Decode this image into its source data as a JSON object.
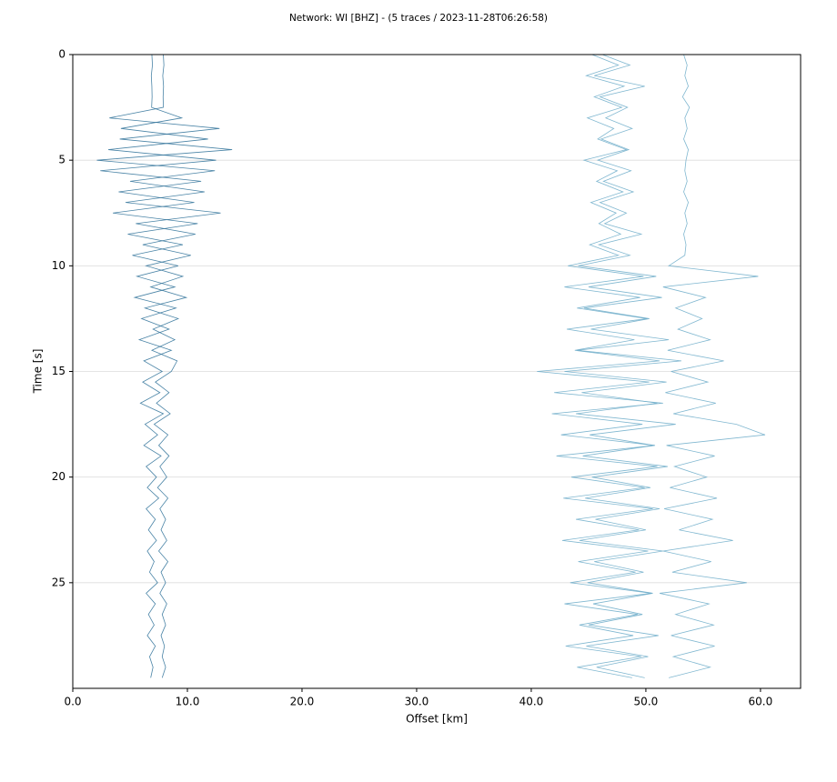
{
  "chart_data": {
    "type": "wiggle",
    "title": "Network: WI [BHZ] - (5 traces / 2023-11-28T06:26:58)",
    "xlabel": "Offset [km]",
    "ylabel": "Time [s]",
    "xlim": [
      0,
      63.5
    ],
    "ylim": [
      0,
      30
    ],
    "y_inverted": true,
    "grid": "y",
    "xticks": [
      {
        "value": 0,
        "label": "0.0"
      },
      {
        "value": 10,
        "label": "10.0"
      },
      {
        "value": 20,
        "label": "20.0"
      },
      {
        "value": 30,
        "label": "30.0"
      },
      {
        "value": 40,
        "label": "40.0"
      },
      {
        "value": 50,
        "label": "50.0"
      },
      {
        "value": 60,
        "label": "60.0"
      }
    ],
    "yticks": [
      0,
      5,
      10,
      15,
      20,
      25
    ],
    "t": [
      0,
      0.5,
      1,
      1.5,
      2,
      2.5,
      3,
      3.5,
      4,
      4.5,
      5,
      5.5,
      6,
      6.5,
      7,
      7.5,
      8,
      8.5,
      9,
      9.5,
      10,
      10.5,
      11,
      11.5,
      12,
      12.5,
      13,
      13.5,
      14,
      14.5,
      15,
      15.5,
      16,
      16.5,
      17,
      17.5,
      18,
      18.5,
      19,
      19.5,
      20,
      20.5,
      21,
      21.5,
      22,
      22.5,
      23,
      23.5,
      24,
      24.5,
      25,
      25.5,
      26,
      26.5,
      27,
      27.5,
      28,
      28.5,
      29,
      29.5
    ],
    "series": [
      {
        "color": "#2a6f97",
        "values": [
          6.9,
          6.95,
          6.85,
          6.9,
          6.92,
          6.88,
          9.5,
          4.2,
          11.8,
          3.1,
          12.5,
          2.4,
          11.2,
          4.0,
          10.6,
          3.5,
          10.9,
          4.8,
          9.6,
          5.2,
          9.2,
          5.6,
          8.9,
          5.4,
          9.0,
          6.0,
          8.4,
          5.8,
          8.6,
          6.2,
          7.8,
          6.1,
          7.6,
          5.9,
          7.9,
          6.3,
          7.4,
          6.2,
          7.7,
          6.4,
          7.3,
          6.5,
          7.5,
          6.4,
          7.2,
          6.6,
          7.3,
          6.5,
          7.1,
          6.7,
          7.4,
          6.4,
          7.2,
          6.6,
          7.1,
          6.5,
          7.2,
          6.7,
          7.0,
          6.8
        ]
      },
      {
        "color": "#2a6f97",
        "values": [
          7.9,
          7.95,
          7.85,
          7.92,
          7.88,
          7.9,
          3.2,
          12.8,
          4.1,
          13.9,
          2.1,
          12.4,
          5.0,
          11.5,
          4.6,
          12.9,
          5.5,
          10.7,
          6.1,
          10.3,
          6.4,
          9.6,
          6.8,
          9.9,
          6.3,
          9.2,
          7.0,
          8.9,
          6.9,
          9.1,
          8.6,
          7.2,
          8.4,
          7.3,
          8.5,
          7.1,
          8.3,
          7.5,
          8.4,
          7.6,
          8.2,
          7.4,
          8.3,
          7.6,
          8.1,
          7.7,
          8.2,
          7.5,
          8.3,
          7.7,
          8.1,
          7.6,
          8.2,
          7.8,
          8.1,
          7.7,
          8.0,
          7.8,
          8.1,
          7.8
        ]
      },
      {
        "color": "#6aaac8",
        "values": [
          45.3,
          47.6,
          44.8,
          48.1,
          45.5,
          47.9,
          44.9,
          47.2,
          45.8,
          48.3,
          44.6,
          47.5,
          45.7,
          48.0,
          45.2,
          47.4,
          45.9,
          47.8,
          45.1,
          47.6,
          43.2,
          49.8,
          42.9,
          49.5,
          44.0,
          50.1,
          43.1,
          49.0,
          43.8,
          51.2,
          40.5,
          50.3,
          42.0,
          51.5,
          41.8,
          49.7,
          42.6,
          50.8,
          42.2,
          51.0,
          43.5,
          49.9,
          42.8,
          50.6,
          43.9,
          49.4,
          42.7,
          50.2,
          44.1,
          49.1,
          43.4,
          50.5,
          42.9,
          49.3,
          44.2,
          48.9,
          43.0,
          49.6,
          44.0,
          48.8
        ]
      },
      {
        "color": "#6aaac8",
        "values": [
          46.2,
          48.6,
          45.5,
          49.9,
          46.0,
          48.4,
          46.5,
          48.8,
          46.1,
          48.5,
          45.8,
          48.7,
          46.3,
          48.9,
          46.0,
          48.3,
          46.4,
          49.6,
          45.9,
          48.6,
          44.1,
          50.9,
          45.0,
          51.4,
          44.6,
          50.3,
          45.2,
          52.0,
          44.0,
          53.1,
          42.9,
          51.8,
          44.4,
          51.0,
          43.9,
          52.6,
          45.1,
          50.7,
          44.5,
          51.9,
          45.3,
          50.4,
          44.7,
          51.2,
          45.6,
          50.0,
          44.2,
          51.5,
          45.5,
          49.8,
          44.9,
          50.6,
          45.4,
          49.7,
          45.0,
          51.1,
          44.8,
          50.2,
          45.7,
          49.9
        ]
      },
      {
        "color": "#6aaac8",
        "values": [
          53.3,
          53.6,
          53.4,
          53.7,
          53.2,
          53.8,
          53.4,
          53.6,
          53.3,
          53.7,
          53.5,
          53.4,
          53.6,
          53.3,
          53.7,
          53.4,
          53.6,
          53.3,
          53.5,
          53.4,
          52.0,
          59.8,
          51.5,
          55.2,
          52.6,
          54.9,
          52.8,
          55.6,
          51.9,
          56.8,
          52.2,
          55.4,
          51.7,
          56.1,
          52.4,
          57.9,
          60.4,
          51.8,
          56.0,
          52.5,
          55.3,
          52.1,
          56.2,
          51.6,
          55.8,
          52.9,
          57.6,
          51.5,
          55.7,
          52.3,
          58.8,
          51.2,
          55.5,
          52.6,
          55.9,
          52.2,
          56.0,
          52.4,
          55.6,
          52.0
        ]
      }
    ]
  }
}
